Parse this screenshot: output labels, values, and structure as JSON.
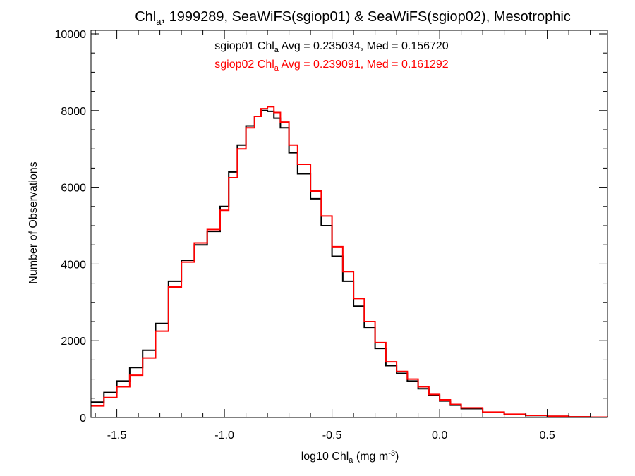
{
  "chart_data": {
    "type": "line",
    "step": true,
    "title": {
      "prefix": "Chl",
      "sub": "a",
      "suffix": ", 1999289, SeaWiFS(sgiop01) & SeaWiFS(sgiop02), Mesotrophic"
    },
    "xlabel": {
      "prefix": "log10 Chl",
      "sub": "a",
      "mid": " (mg m",
      "sup": "-3",
      "suffix": ")"
    },
    "ylabel": "Number of Observations",
    "xlim": [
      -1.62,
      0.78
    ],
    "ylim": [
      0,
      10000
    ],
    "x_ticks": [
      {
        "value": -1.5,
        "label": "-1.5"
      },
      {
        "value": -1.0,
        "label": "-1.0"
      },
      {
        "value": -0.5,
        "label": "-0.5"
      },
      {
        "value": 0.0,
        "label": "0.0"
      },
      {
        "value": 0.5,
        "label": "0.5"
      }
    ],
    "y_ticks": [
      {
        "value": 0,
        "label": "0"
      },
      {
        "value": 2000,
        "label": "2000"
      },
      {
        "value": 4000,
        "label": "4000"
      },
      {
        "value": 6000,
        "label": "6000"
      },
      {
        "value": 8000,
        "label": "8000"
      },
      {
        "value": 10000,
        "label": "10000"
      }
    ],
    "grid": false,
    "annotations": [
      {
        "prefix": "sgiop01 Chl",
        "sub": "a",
        "suffix": " Avg = 0.235034, Med = 0.156720",
        "color": "#000000"
      },
      {
        "prefix": "sgiop02 Chl",
        "sub": "a",
        "suffix": " Avg = 0.239091, Med = 0.161292",
        "color": "#ff0000"
      }
    ],
    "series": [
      {
        "color": "#000000",
        "x": [
          -1.62,
          -1.56,
          -1.5,
          -1.44,
          -1.38,
          -1.32,
          -1.26,
          -1.2,
          -1.14,
          -1.08,
          -1.02,
          -0.98,
          -0.94,
          -0.9,
          -0.86,
          -0.83,
          -0.8,
          -0.77,
          -0.74,
          -0.7,
          -0.66,
          -0.6,
          -0.55,
          -0.5,
          -0.45,
          -0.4,
          -0.35,
          -0.3,
          -0.25,
          -0.2,
          -0.15,
          -0.1,
          -0.05,
          0.0,
          0.05,
          0.1,
          0.2,
          0.3,
          0.4,
          0.5,
          0.6,
          0.7,
          0.78
        ],
        "y": [
          400,
          650,
          950,
          1300,
          1750,
          2450,
          3550,
          4100,
          4500,
          4850,
          5500,
          6400,
          7100,
          7600,
          7850,
          8000,
          7980,
          7800,
          7550,
          6900,
          6350,
          5700,
          5000,
          4200,
          3550,
          2900,
          2350,
          1800,
          1350,
          1150,
          950,
          750,
          580,
          430,
          320,
          230,
          130,
          80,
          50,
          30,
          15,
          8,
          5
        ]
      },
      {
        "color": "#ff0000",
        "x": [
          -1.62,
          -1.56,
          -1.5,
          -1.44,
          -1.38,
          -1.32,
          -1.26,
          -1.2,
          -1.14,
          -1.08,
          -1.02,
          -0.98,
          -0.94,
          -0.9,
          -0.86,
          -0.83,
          -0.8,
          -0.77,
          -0.74,
          -0.7,
          -0.66,
          -0.6,
          -0.55,
          -0.5,
          -0.45,
          -0.4,
          -0.35,
          -0.3,
          -0.25,
          -0.2,
          -0.15,
          -0.1,
          -0.05,
          0.0,
          0.05,
          0.1,
          0.2,
          0.3,
          0.4,
          0.5,
          0.6,
          0.7,
          0.78
        ],
        "y": [
          300,
          520,
          800,
          1100,
          1550,
          2250,
          3400,
          4050,
          4550,
          4900,
          5400,
          6250,
          7000,
          7550,
          7850,
          8050,
          8100,
          7950,
          7700,
          7100,
          6600,
          5900,
          5250,
          4450,
          3800,
          3100,
          2500,
          1950,
          1450,
          1200,
          1000,
          800,
          600,
          460,
          340,
          250,
          140,
          85,
          55,
          32,
          16,
          9,
          5
        ]
      }
    ]
  }
}
